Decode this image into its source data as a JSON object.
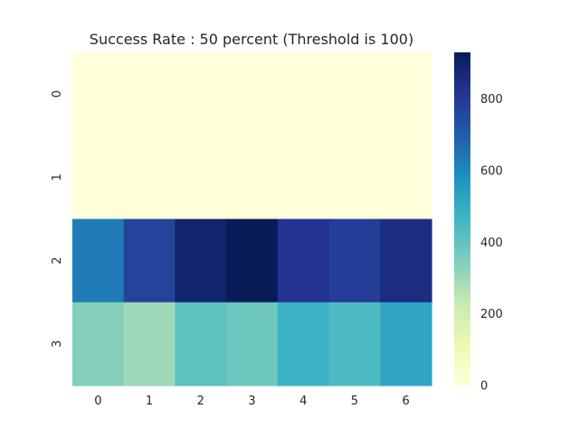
{
  "chart_data": {
    "type": "heatmap",
    "title": "Success Rate : 50 percent (Threshold is 100)",
    "xlabel": "",
    "ylabel": "",
    "x_categories": [
      "0",
      "1",
      "2",
      "3",
      "4",
      "5",
      "6"
    ],
    "y_categories": [
      "0",
      "1",
      "2",
      "3"
    ],
    "values": [
      [
        0,
        0,
        0,
        0,
        0,
        0,
        0
      ],
      [
        0,
        0,
        0,
        0,
        0,
        0,
        0
      ],
      [
        630,
        770,
        890,
        930,
        820,
        790,
        850
      ],
      [
        340,
        300,
        410,
        380,
        480,
        440,
        520
      ]
    ],
    "colorbar": {
      "min": 0,
      "max": 930,
      "ticks": [
        0,
        200,
        400,
        600,
        800
      ],
      "colormap": "YlGnBu",
      "stops": [
        "#ffffd9",
        "#edf8b1",
        "#c7e9b4",
        "#7fcdbb",
        "#41b6c4",
        "#1d91c0",
        "#225ea8",
        "#253494",
        "#081d58"
      ]
    },
    "grid": false,
    "legend": "colorbar-right"
  }
}
